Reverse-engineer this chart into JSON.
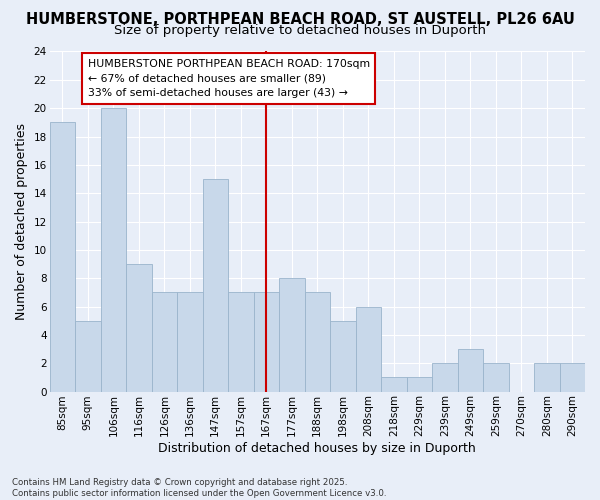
{
  "title": "HUMBERSTONE, PORTHPEAN BEACH ROAD, ST AUSTELL, PL26 6AU",
  "subtitle": "Size of property relative to detached houses in Duporth",
  "xlabel": "Distribution of detached houses by size in Duporth",
  "ylabel": "Number of detached properties",
  "categories": [
    "85sqm",
    "95sqm",
    "106sqm",
    "116sqm",
    "126sqm",
    "136sqm",
    "147sqm",
    "157sqm",
    "167sqm",
    "177sqm",
    "188sqm",
    "198sqm",
    "208sqm",
    "218sqm",
    "229sqm",
    "239sqm",
    "249sqm",
    "259sqm",
    "270sqm",
    "280sqm",
    "290sqm"
  ],
  "values": [
    19,
    5,
    20,
    9,
    7,
    7,
    15,
    7,
    7,
    8,
    7,
    5,
    6,
    1,
    1,
    2,
    3,
    2,
    0,
    2,
    2
  ],
  "bar_color": "#c8d8ea",
  "bar_edge_color": "#9ab4cc",
  "vline_x": 8,
  "vline_color": "#cc0000",
  "annotation_text": "HUMBERSTONE PORTHPEAN BEACH ROAD: 170sqm\n← 67% of detached houses are smaller (89)\n33% of semi-detached houses are larger (43) →",
  "annotation_box_color": "#ffffff",
  "annotation_box_edge": "#cc0000",
  "ylim": [
    0,
    24
  ],
  "yticks": [
    0,
    2,
    4,
    6,
    8,
    10,
    12,
    14,
    16,
    18,
    20,
    22,
    24
  ],
  "background_color": "#e8eef8",
  "grid_color": "#ffffff",
  "title_fontsize": 10.5,
  "subtitle_fontsize": 9.5,
  "ylabel_fontsize": 9,
  "xlabel_fontsize": 9,
  "tick_fontsize": 7.5,
  "footnote": "Contains HM Land Registry data © Crown copyright and database right 2025.\nContains public sector information licensed under the Open Government Licence v3.0."
}
